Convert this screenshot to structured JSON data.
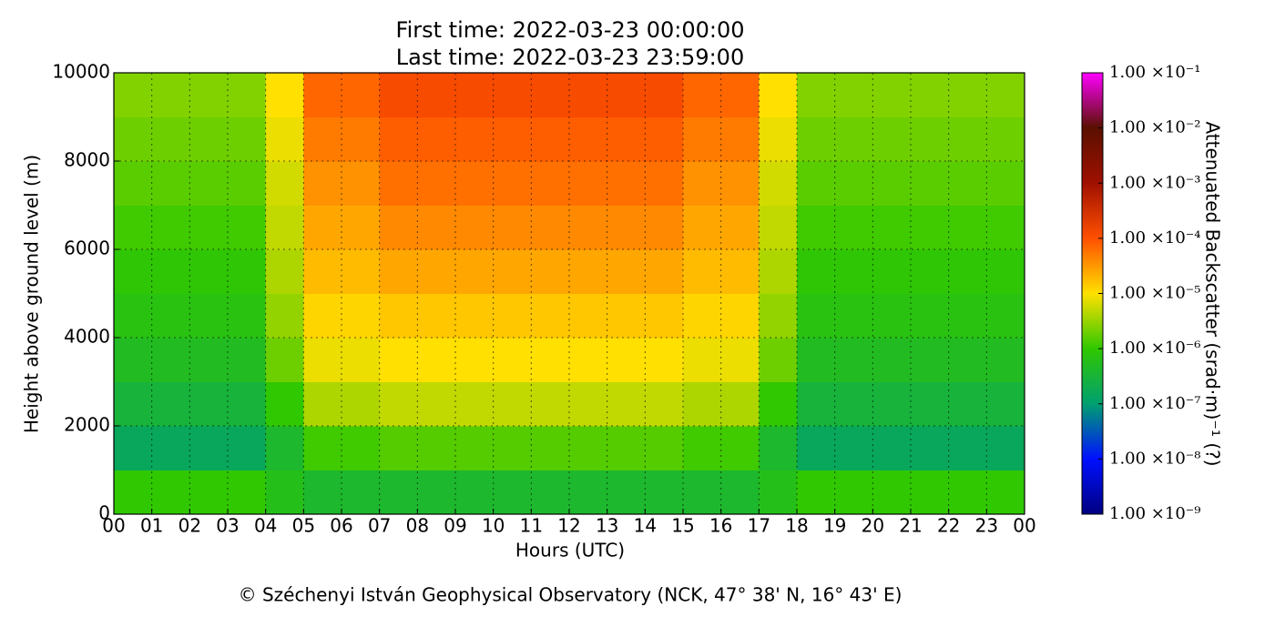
{
  "chart_data": {
    "type": "heatmap",
    "title": "First time: 2022-03-23 00:00:00",
    "subtitle": "Last time: 2022-03-23 23:59:00",
    "x_label": "Hours (UTC)",
    "y_label": "Height above ground level (m)",
    "colorbar_label": "Attenuated Backscatter (srad·m)⁻¹ (?)",
    "footer": "© Széchenyi István Geophysical Observatory (NCK, 47° 38' N, 16° 43' E)",
    "x": [
      0,
      1,
      2,
      3,
      4,
      5,
      6,
      7,
      8,
      9,
      10,
      11,
      12,
      13,
      14,
      15,
      16,
      17,
      18,
      19,
      20,
      21,
      22,
      23,
      24
    ],
    "y": [
      0,
      1000,
      2000,
      3000,
      4000,
      5000,
      6000,
      7000,
      8000,
      9000,
      10000
    ],
    "values": [
      [
        1e-06,
        1e-06,
        1e-06,
        1e-06,
        6e-07,
        4e-07,
        4e-07,
        4e-07,
        4e-07,
        4e-07,
        4e-07,
        4e-07,
        4e-07,
        4e-07,
        4e-07,
        4e-07,
        4e-07,
        6e-07,
        1e-06,
        1e-06,
        1e-06,
        1e-06,
        1e-06,
        1e-06
      ],
      [
        1.5e-07,
        1.5e-07,
        1.5e-07,
        1.5e-07,
        4e-07,
        1.2e-06,
        1.2e-06,
        1.5e-06,
        1.5e-06,
        1.5e-06,
        1.5e-06,
        1.5e-06,
        1.5e-06,
        1.5e-06,
        1.5e-06,
        1.2e-06,
        1.2e-06,
        4e-07,
        1.5e-07,
        1.5e-07,
        1.5e-07,
        1.5e-07,
        1.5e-07,
        1.5e-07
      ],
      [
        3e-07,
        3e-07,
        3e-07,
        3e-07,
        1e-06,
        4e-06,
        4e-06,
        5e-06,
        5e-06,
        5e-06,
        5e-06,
        5e-06,
        5e-06,
        5e-06,
        5e-06,
        4e-06,
        4e-06,
        1e-06,
        3e-07,
        3e-07,
        3e-07,
        3e-07,
        3e-07,
        3e-07
      ],
      [
        5e-07,
        5e-07,
        5e-07,
        5e-07,
        2e-06,
        8e-06,
        8e-06,
        1e-05,
        1e-05,
        1e-05,
        1e-05,
        1e-05,
        1e-05,
        1e-05,
        1e-05,
        8e-06,
        8e-06,
        2e-06,
        5e-07,
        5e-07,
        5e-07,
        5e-07,
        5e-07,
        5e-07
      ],
      [
        7e-07,
        7e-07,
        7e-07,
        7e-07,
        3e-06,
        1.2e-05,
        1.2e-05,
        1.5e-05,
        1.5e-05,
        1.5e-05,
        1.5e-05,
        1.5e-05,
        1.5e-05,
        1.5e-05,
        1.5e-05,
        1.2e-05,
        1.2e-05,
        3e-06,
        7e-07,
        7e-07,
        7e-07,
        7e-07,
        7e-07,
        7e-07
      ],
      [
        9e-07,
        9e-07,
        9e-07,
        9e-07,
        4e-06,
        1.8e-05,
        1.8e-05,
        2.5e-05,
        2.5e-05,
        2.5e-05,
        2.5e-05,
        2.5e-05,
        2.5e-05,
        2.5e-05,
        2.5e-05,
        1.8e-05,
        1.8e-05,
        4e-06,
        9e-07,
        9e-07,
        9e-07,
        9e-07,
        9e-07,
        9e-07
      ],
      [
        1.2e-06,
        1.2e-06,
        1.2e-06,
        1.2e-06,
        5e-06,
        2.5e-05,
        2.5e-05,
        4e-05,
        4e-05,
        4e-05,
        4e-05,
        4e-05,
        4e-05,
        4e-05,
        4e-05,
        2.5e-05,
        2.5e-05,
        5e-06,
        1.2e-06,
        1.2e-06,
        1.2e-06,
        1.2e-06,
        1.2e-06,
        1.2e-06
      ],
      [
        1.6e-06,
        1.6e-06,
        1.6e-06,
        1.6e-06,
        6e-06,
        3.5e-05,
        3.5e-05,
        6e-05,
        6e-05,
        6e-05,
        6e-05,
        6e-05,
        6e-05,
        6e-05,
        6e-05,
        3.5e-05,
        3.5e-05,
        6e-06,
        1.6e-06,
        1.6e-06,
        1.6e-06,
        1.6e-06,
        1.6e-06,
        1.6e-06
      ],
      [
        2e-06,
        2e-06,
        2e-06,
        2e-06,
        8e-06,
        5e-05,
        5e-05,
        8e-05,
        8e-05,
        8e-05,
        8e-05,
        8e-05,
        8e-05,
        8e-05,
        8e-05,
        5e-05,
        5e-05,
        8e-06,
        2e-06,
        2e-06,
        2e-06,
        2e-06,
        2e-06,
        2e-06
      ],
      [
        2.5e-06,
        2.5e-06,
        2.5e-06,
        2.5e-06,
        1e-05,
        7e-05,
        7e-05,
        0.00012,
        0.00012,
        0.00012,
        0.00012,
        0.00012,
        0.00012,
        0.00012,
        0.00012,
        7e-05,
        7e-05,
        1e-05,
        2.5e-06,
        2.5e-06,
        2.5e-06,
        2.5e-06,
        2.5e-06,
        2.5e-06
      ]
    ],
    "xlim": [
      0,
      24
    ],
    "xticks": [
      {
        "value": 0,
        "label": "00"
      },
      {
        "value": 1,
        "label": "01"
      },
      {
        "value": 2,
        "label": "02"
      },
      {
        "value": 3,
        "label": "03"
      },
      {
        "value": 4,
        "label": "04"
      },
      {
        "value": 5,
        "label": "05"
      },
      {
        "value": 6,
        "label": "06"
      },
      {
        "value": 7,
        "label": "07"
      },
      {
        "value": 8,
        "label": "08"
      },
      {
        "value": 9,
        "label": "09"
      },
      {
        "value": 10,
        "label": "10"
      },
      {
        "value": 11,
        "label": "11"
      },
      {
        "value": 12,
        "label": "12"
      },
      {
        "value": 13,
        "label": "13"
      },
      {
        "value": 14,
        "label": "14"
      },
      {
        "value": 15,
        "label": "15"
      },
      {
        "value": 16,
        "label": "16"
      },
      {
        "value": 17,
        "label": "17"
      },
      {
        "value": 18,
        "label": "18"
      },
      {
        "value": 19,
        "label": "19"
      },
      {
        "value": 20,
        "label": "20"
      },
      {
        "value": 21,
        "label": "21"
      },
      {
        "value": 22,
        "label": "22"
      },
      {
        "value": 23,
        "label": "23"
      },
      {
        "value": 24,
        "label": "00"
      }
    ],
    "ylim": [
      0,
      10000
    ],
    "yticks": [
      0,
      2000,
      4000,
      6000,
      8000,
      10000
    ],
    "zlim": [
      1e-09,
      0.1
    ],
    "zscale": "log",
    "zticks": [
      {
        "value": 1e-09,
        "label": "1.00 ×10⁻⁹"
      },
      {
        "value": 1e-08,
        "label": "1.00 ×10⁻⁸"
      },
      {
        "value": 1e-07,
        "label": "1.00 ×10⁻⁷"
      },
      {
        "value": 1e-06,
        "label": "1.00 ×10⁻⁶"
      },
      {
        "value": 1e-05,
        "label": "1.00 ×10⁻⁵"
      },
      {
        "value": 0.0001,
        "label": "1.00 ×10⁻⁴"
      },
      {
        "value": 0.001,
        "label": "1.00 ×10⁻³"
      },
      {
        "value": 0.01,
        "label": "1.00 ×10⁻²"
      },
      {
        "value": 0.1,
        "label": "1.00 ×10⁻¹"
      }
    ],
    "colormap": [
      "#000080",
      "#0010ff",
      "#00a070",
      "#30c800",
      "#ffe000",
      "#ff5000",
      "#a01000",
      "#5a1000",
      "#ff00ff"
    ],
    "grid": true
  }
}
